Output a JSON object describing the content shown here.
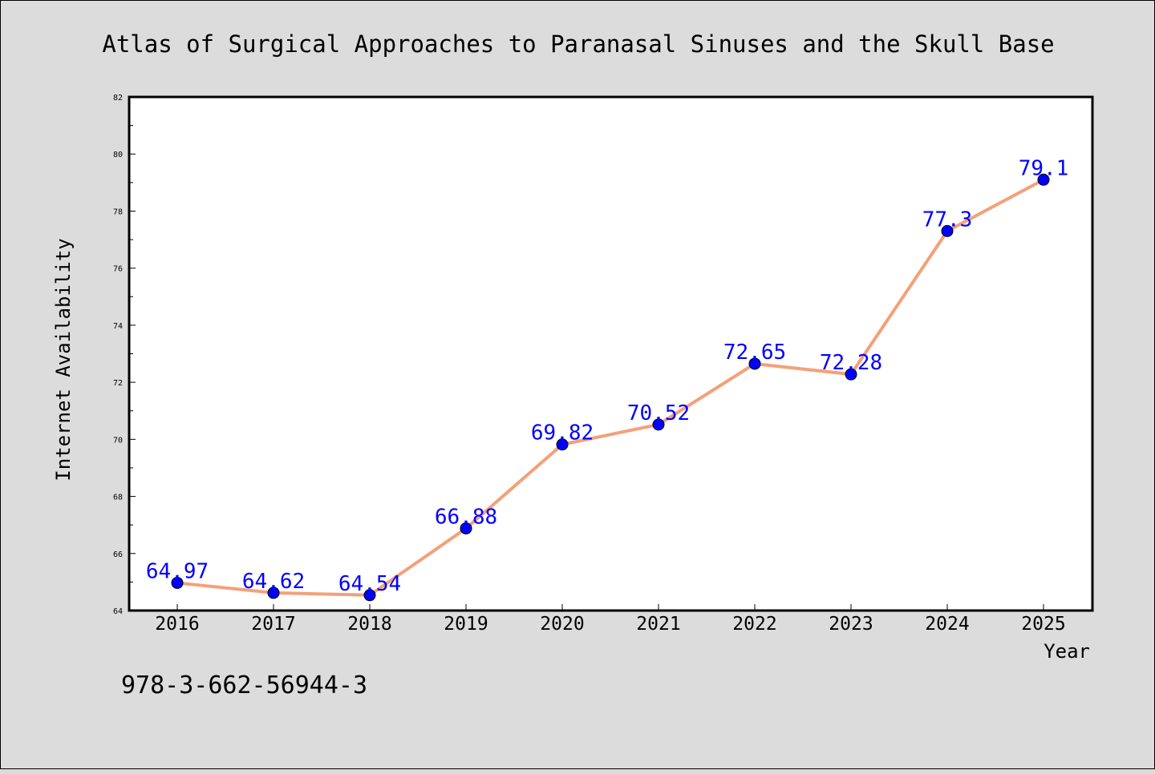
{
  "chart_data": {
    "type": "line",
    "title": "Atlas of Surgical Approaches to Paranasal Sinuses and the Skull Base",
    "xlabel": "Year",
    "ylabel": "Internet Availability",
    "categories": [
      "2016",
      "2017",
      "2018",
      "2019",
      "2020",
      "2021",
      "2022",
      "2023",
      "2024",
      "2025"
    ],
    "series": [
      {
        "values": [
          64.97,
          64.62,
          64.54,
          66.88,
          69.82,
          70.52,
          72.65,
          72.28,
          77.3,
          79.1
        ],
        "labels": [
          "64.97",
          "64.62",
          "64.54",
          "66.88",
          "69.82",
          "70.52",
          "72.65",
          "72.28",
          "77.3",
          "79.1"
        ],
        "line_color": "#f4a07a",
        "marker_color": "#0000ff",
        "label_color": "#0000ff"
      }
    ],
    "ylim": [
      64,
      82
    ],
    "yticks": [
      64,
      66,
      68,
      70,
      72,
      74,
      76,
      78,
      80,
      82
    ],
    "grid": false,
    "annotation": "978-3-662-56944-3"
  }
}
